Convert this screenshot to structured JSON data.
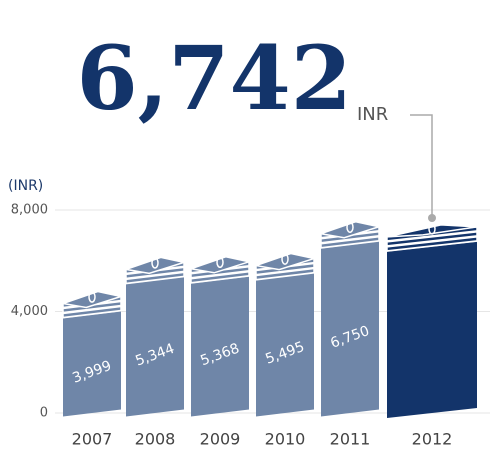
{
  "chart_data": {
    "type": "bar",
    "y_label": "(INR)",
    "categories": [
      "2007",
      "2008",
      "2009",
      "2010",
      "2011",
      "2012"
    ],
    "values": [
      3999,
      5344,
      5368,
      5495,
      6750,
      6742
    ],
    "value_labels": [
      "3,999",
      "5,344",
      "5,368",
      "5,495",
      "6,750",
      "6,742"
    ],
    "highlight_unit": "INR",
    "color": "#6f86a8",
    "highlight_color": "#13346a",
    "ylim": [
      0,
      8000
    ],
    "yticks": [
      0,
      {
        "value": 4000,
        "label": "4,000"
      },
      {
        "value": 8000,
        "label": "8,000"
      }
    ],
    "grid": true
  }
}
